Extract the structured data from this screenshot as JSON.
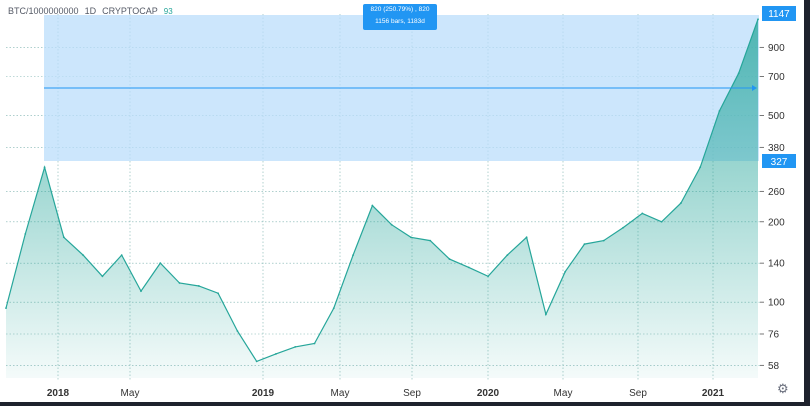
{
  "symbol": {
    "ticker": "BTC/1000000000",
    "interval": "1D",
    "exchange": "CRYPTOCAP",
    "live_indicator": "93"
  },
  "measure_tooltip": {
    "line1": "820 (250.79%) , 820",
    "line2": "1156 bars, 1183d"
  },
  "colors": {
    "area_line": "#26a69a",
    "area_fill_top": "#4db6a8",
    "range_box": "#bbdefb",
    "range_line": "#2196f3",
    "price_label_bg": "#2196f3"
  },
  "price_axis": {
    "ticks": [
      "900",
      "700",
      "500",
      "380",
      "260",
      "200",
      "140",
      "100",
      "76",
      "58"
    ],
    "current_price_label": "1147",
    "range_start_label": "327"
  },
  "time_axis": {
    "ticks": [
      "2018",
      "May",
      "2019",
      "May",
      "Sep",
      "2020",
      "May",
      "Sep",
      "2021"
    ]
  },
  "settings_icon": "gear-icon",
  "chart_data": {
    "type": "area",
    "scale": "log",
    "ylim": [
      52,
      1200
    ],
    "x": [
      "2017-11",
      "2017-12",
      "2018-01",
      "2018-02",
      "2018-03",
      "2018-04",
      "2018-05",
      "2018-06",
      "2018-07",
      "2018-08",
      "2018-09",
      "2018-10",
      "2018-11",
      "2018-12",
      "2019-01",
      "2019-02",
      "2019-03",
      "2019-04",
      "2019-05",
      "2019-06",
      "2019-07",
      "2019-08",
      "2019-09",
      "2019-10",
      "2019-11",
      "2019-12",
      "2020-01",
      "2020-02",
      "2020-03",
      "2020-04",
      "2020-05",
      "2020-06",
      "2020-07",
      "2020-08",
      "2020-09",
      "2020-10",
      "2020-11",
      "2020-12",
      "2021-01",
      "2021-02"
    ],
    "values": [
      95,
      180,
      320,
      175,
      150,
      125,
      150,
      110,
      140,
      118,
      115,
      108,
      78,
      60,
      64,
      68,
      70,
      95,
      150,
      230,
      195,
      175,
      170,
      145,
      135,
      125,
      150,
      175,
      90,
      130,
      165,
      170,
      190,
      215,
      200,
      235,
      320,
      520,
      720,
      1147
    ],
    "xlabel": "",
    "ylabel": "",
    "grid": true
  }
}
